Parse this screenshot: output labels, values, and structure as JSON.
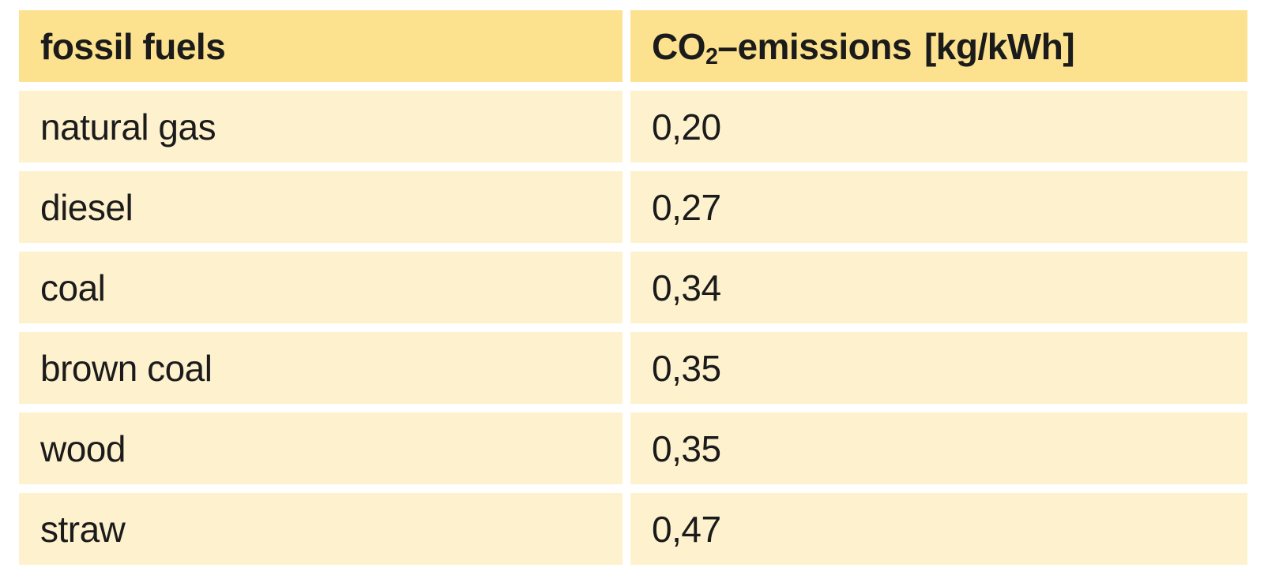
{
  "chart_data": {
    "type": "table",
    "title": "",
    "columns": [
      "fossil fuels",
      "CO₂-emissions [kg/kWh]"
    ],
    "categories": [
      "natural gas",
      "diesel",
      "coal",
      "brown coal",
      "wood",
      "straw"
    ],
    "values": [
      0.2,
      0.27,
      0.34,
      0.35,
      0.35,
      0.47
    ],
    "value_unit": "kg/kWh",
    "value_display": [
      "0,20",
      "0,27",
      "0,34",
      "0,35",
      "0,35",
      "0,47"
    ],
    "decimal_separator": "comma"
  },
  "table": {
    "header1": "fossil fuels",
    "header2": {
      "prefix": "CO",
      "sub": "2",
      "mid": "–emissions",
      "unit": "[kg/kWh]"
    },
    "rows": [
      {
        "fuel": "natural gas",
        "value": "0,20"
      },
      {
        "fuel": "diesel",
        "value": "0,27"
      },
      {
        "fuel": "coal",
        "value": "0,34"
      },
      {
        "fuel": "brown coal",
        "value": "0,35"
      },
      {
        "fuel": "wood",
        "value": "0,35"
      },
      {
        "fuel": "straw",
        "value": "0,47"
      }
    ]
  },
  "colors": {
    "header_bg": "#FCE28E",
    "row_bg": "#FDF1CE",
    "text": "#1B1B1B",
    "background": "#FFFFFF"
  }
}
